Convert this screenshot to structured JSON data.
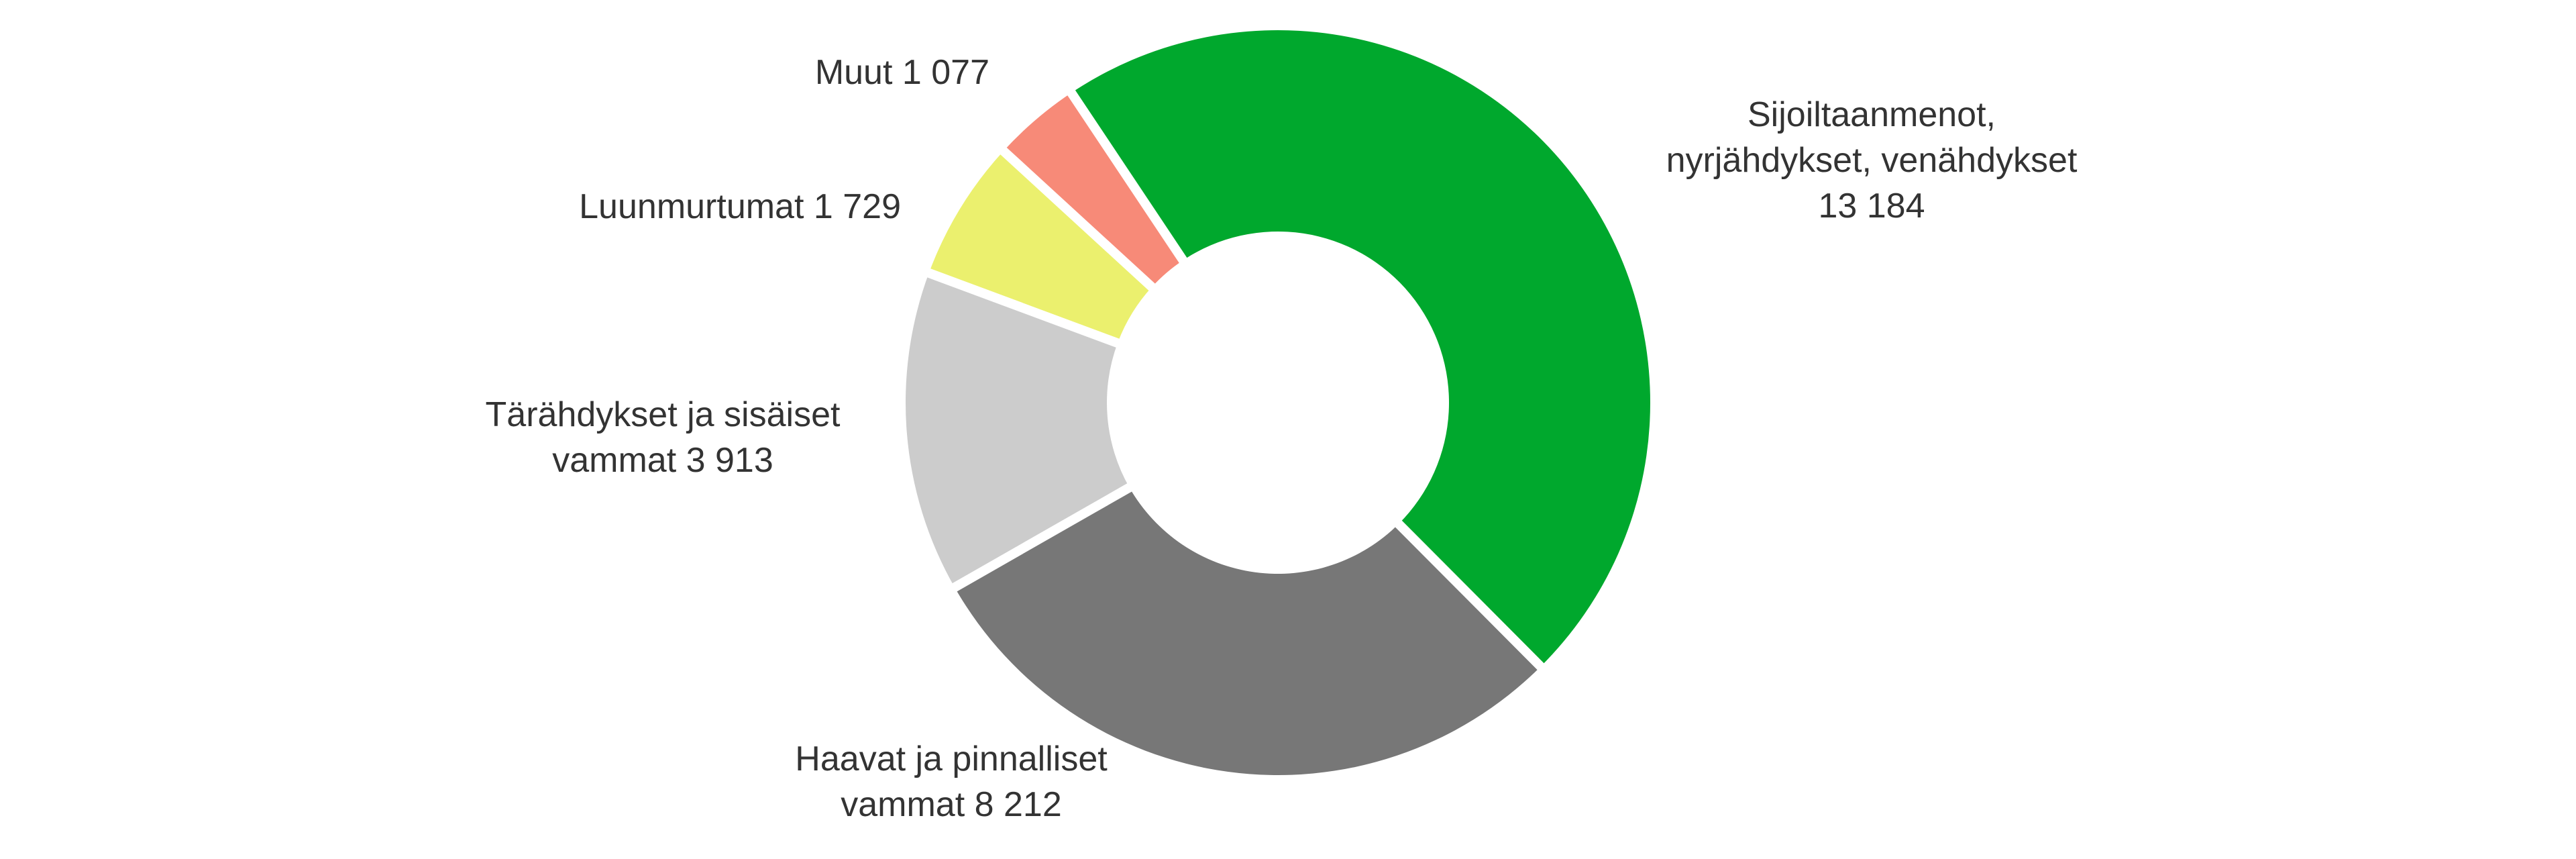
{
  "chart_data": {
    "type": "pie",
    "title": "",
    "donut": true,
    "legend": "none",
    "slices": [
      {
        "label_lines": [
          "Sijoiltaanmenot,",
          "nyrjähdykset, venähdykset",
          "13 184"
        ],
        "value": 13184,
        "color": "#00a82d"
      },
      {
        "label_lines": [
          "Haavat ja pinnalliset",
          "vammat 8 212"
        ],
        "value": 8212,
        "color": "#777777"
      },
      {
        "label_lines": [
          "Tärähdykset ja sisäiset",
          "vammat 3 913"
        ],
        "value": 3913,
        "color": "#cccccc"
      },
      {
        "label_lines": [
          "Luunmurtumat 1 729"
        ],
        "value": 1729,
        "color": "#ebf06e"
      },
      {
        "label_lines": [
          "Muut 1 077"
        ],
        "value": 1077,
        "color": "#f78a78"
      }
    ]
  }
}
